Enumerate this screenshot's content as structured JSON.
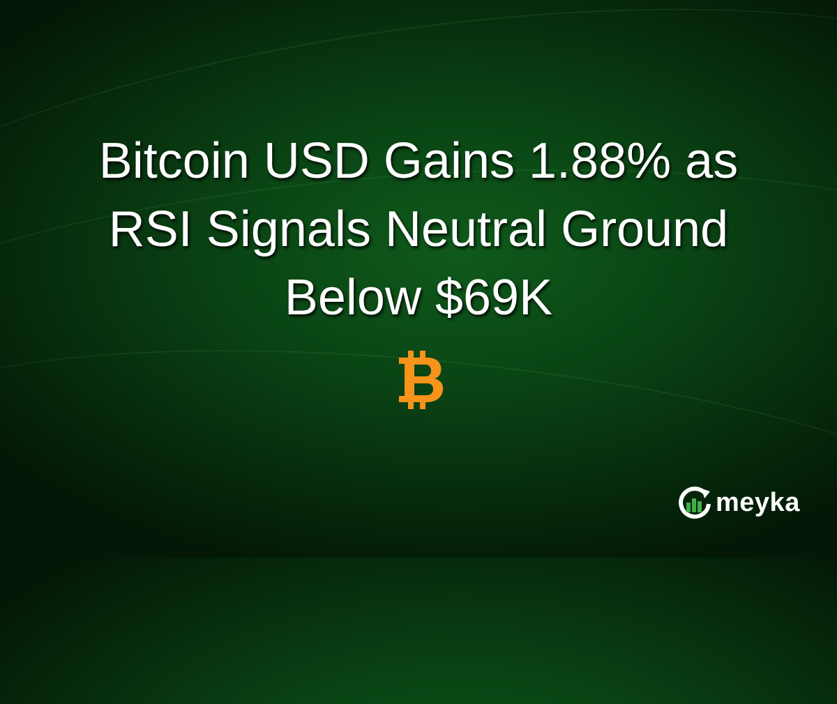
{
  "headline": {
    "lines": [
      "Bitcoin USD Gains 1.88% as",
      "RSI Signals Neutral Ground",
      "Below $69K"
    ]
  },
  "icon": {
    "name": "bitcoin-icon",
    "color": "#F7931A"
  },
  "brand": {
    "name": "meyka",
    "accent": "#3fae49"
  },
  "colors": {
    "background": "#0a4414",
    "text": "#ffffff"
  }
}
